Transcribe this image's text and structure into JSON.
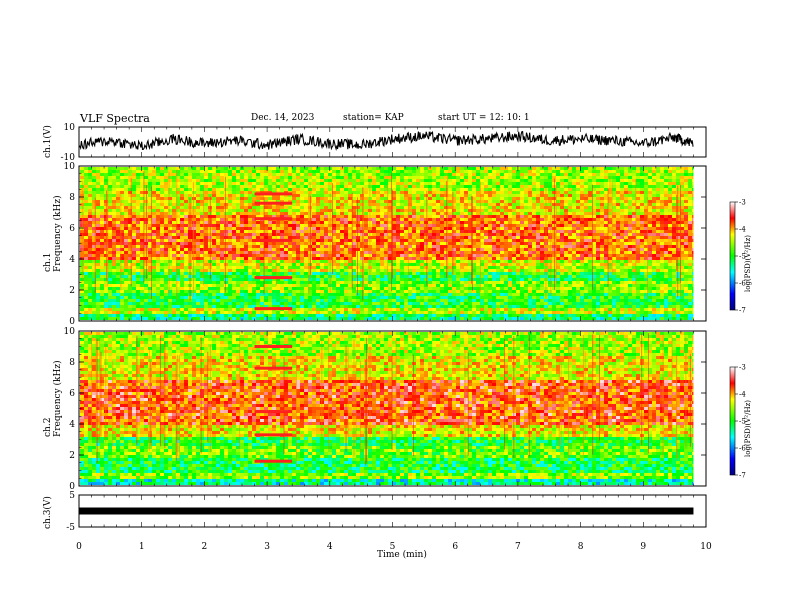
{
  "header": {
    "title": "VLF Spectra",
    "date": "Dec. 14, 2023",
    "station": "station= KAP",
    "start_ut": "start  UT  =   12: 10: 1"
  },
  "colors": {
    "high": "#ff0000",
    "mid": "#ffff00",
    "low": "#00ff00",
    "lower": "#00ffff",
    "lowest": "#0000ff",
    "floor": "#000080"
  },
  "chart_data": [
    {
      "type": "line",
      "name": "ch1-waveform",
      "ylabel": "ch.1(V)",
      "ylim": [
        -10,
        10
      ],
      "ytick_labels": [
        "10",
        "-10"
      ],
      "xlim": [
        0,
        10
      ],
      "note_on_data": "noisy waveform fluctuating roughly between -8 and 8 V",
      "x": [
        0,
        0.5,
        1,
        1.5,
        2,
        2.5,
        3,
        3.5,
        4,
        4.5,
        5,
        5.5,
        6,
        6.5,
        7,
        7.5,
        8,
        8.5,
        9,
        9.5,
        9.8
      ],
      "y": [
        -2,
        1,
        -3,
        2,
        -1,
        1,
        -2,
        2,
        -1,
        -2,
        2,
        4,
        1,
        2,
        4,
        1,
        2,
        1,
        -1,
        3,
        -1
      ]
    },
    {
      "type": "heatmap",
      "name": "ch1-spectrogram",
      "ylabel": "ch.1\nFrequency (kHz)",
      "ylim": [
        0,
        10
      ],
      "yticks": [
        0,
        2,
        4,
        6,
        8,
        10
      ],
      "xlim": [
        0,
        10
      ],
      "colorbar": {
        "label": "log(PSD)(V²/Hz)",
        "range": [
          -7,
          -3
        ],
        "ticks": [
          -3,
          -4,
          -5,
          -6,
          -7
        ]
      },
      "bands": [
        {
          "from": 0.0,
          "to": 0.6,
          "log_psd": -5.2
        },
        {
          "from": 0.6,
          "to": 1.0,
          "log_psd": -4.4
        },
        {
          "from": 1.0,
          "to": 2.0,
          "log_psd": -5.0
        },
        {
          "from": 2.0,
          "to": 2.6,
          "log_psd": -4.6
        },
        {
          "from": 2.6,
          "to": 3.2,
          "log_psd": -5.0
        },
        {
          "from": 3.2,
          "to": 4.0,
          "log_psd": -4.4
        },
        {
          "from": 4.0,
          "to": 7.0,
          "log_psd": -3.7
        },
        {
          "from": 7.0,
          "to": 8.5,
          "log_psd": -4.2
        },
        {
          "from": 8.5,
          "to": 10.0,
          "log_psd": -4.5
        }
      ],
      "feature": {
        "x_from": 2.8,
        "x_to": 3.4,
        "freqs_khz": [
          0.8,
          2.8,
          5.2,
          6.6,
          7.6,
          8.2
        ]
      }
    },
    {
      "type": "heatmap",
      "name": "ch2-spectrogram",
      "ylabel": "ch.2\nFrequency (kHz)",
      "ylim": [
        0,
        10
      ],
      "yticks": [
        0,
        2,
        4,
        6,
        8,
        10
      ],
      "xlim": [
        0,
        10
      ],
      "colorbar": {
        "label": "log(PSD)(V²/Hz)",
        "range": [
          -7,
          -3
        ],
        "ticks": [
          -3,
          -4,
          -5,
          -6,
          -7
        ]
      },
      "bands": [
        {
          "from": 0.0,
          "to": 0.6,
          "log_psd": -5.4
        },
        {
          "from": 0.6,
          "to": 1.0,
          "log_psd": -4.6
        },
        {
          "from": 1.0,
          "to": 2.0,
          "log_psd": -5.1
        },
        {
          "from": 2.0,
          "to": 2.6,
          "log_psd": -4.7
        },
        {
          "from": 2.6,
          "to": 3.2,
          "log_psd": -5.0
        },
        {
          "from": 3.2,
          "to": 4.0,
          "log_psd": -4.2
        },
        {
          "from": 4.0,
          "to": 7.0,
          "log_psd": -3.6
        },
        {
          "from": 7.0,
          "to": 8.5,
          "log_psd": -4.2
        },
        {
          "from": 8.5,
          "to": 10.0,
          "log_psd": -4.5
        }
      ],
      "feature": {
        "x_from": 2.8,
        "x_to": 3.4,
        "freqs_khz": [
          1.6,
          3.3,
          4.8,
          7.6,
          9.0
        ]
      }
    },
    {
      "type": "line",
      "name": "ch3-waveform",
      "ylabel": "ch.3(V)",
      "ylim": [
        -5,
        5
      ],
      "ytick_labels": [
        "5",
        "-5"
      ],
      "xlim": [
        0,
        10
      ],
      "x": [
        0,
        9.8
      ],
      "y": [
        0,
        0
      ]
    }
  ],
  "x_axis": {
    "title": "Time (min)",
    "ticks": [
      0,
      1,
      2,
      3,
      4,
      5,
      6,
      7,
      8,
      9,
      10
    ],
    "tick_labels": [
      "0",
      "1",
      "2",
      "3",
      "4",
      "5",
      "6",
      "7",
      "8",
      "9",
      "10"
    ]
  }
}
